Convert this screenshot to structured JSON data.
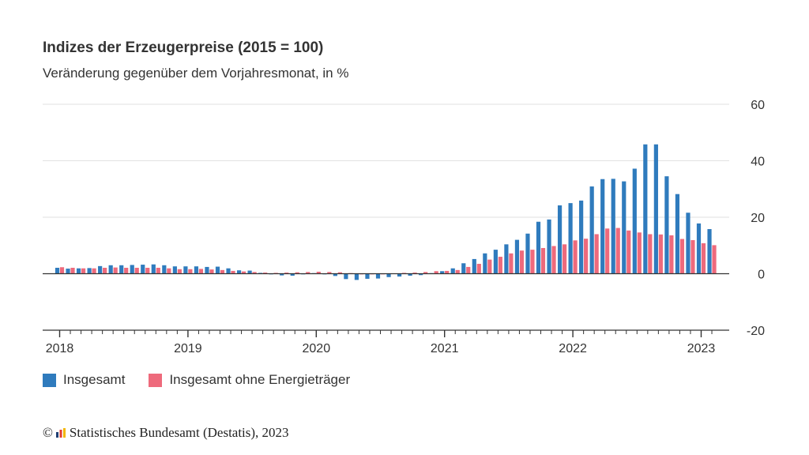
{
  "title": "Indizes der Erzeugerpreise (2015 = 100)",
  "subtitle": "Veränderung gegenüber dem Vorjahresmonat, in %",
  "source": {
    "copyright_symbol": "©",
    "text": "Statistisches Bundesamt (Destatis), 2023"
  },
  "chart_data": {
    "type": "bar",
    "title": "Indizes der Erzeugerpreise (2015 = 100)",
    "subtitle": "Veränderung gegenüber dem Vorjahresmonat, in %",
    "x_start": "2018-01",
    "x_end": "2023-02",
    "x_ticks": [
      "2018",
      "2019",
      "2020",
      "2021",
      "2022",
      "2023"
    ],
    "ylim": [
      -20,
      60
    ],
    "y_ticks": [
      -20,
      0,
      20,
      40,
      60
    ],
    "y_axis_position": "right",
    "grid": true,
    "legend_position": "bottom-left",
    "colors": {
      "insgesamt": "#2f7bbd",
      "ohne_energie": "#ee6a7c"
    },
    "categories": [
      "2018-01",
      "2018-02",
      "2018-03",
      "2018-04",
      "2018-05",
      "2018-06",
      "2018-07",
      "2018-08",
      "2018-09",
      "2018-10",
      "2018-11",
      "2018-12",
      "2019-01",
      "2019-02",
      "2019-03",
      "2019-04",
      "2019-05",
      "2019-06",
      "2019-07",
      "2019-08",
      "2019-09",
      "2019-10",
      "2019-11",
      "2019-12",
      "2020-01",
      "2020-02",
      "2020-03",
      "2020-04",
      "2020-05",
      "2020-06",
      "2020-07",
      "2020-08",
      "2020-09",
      "2020-10",
      "2020-11",
      "2020-12",
      "2021-01",
      "2021-02",
      "2021-03",
      "2021-04",
      "2021-05",
      "2021-06",
      "2021-07",
      "2021-08",
      "2021-09",
      "2021-10",
      "2021-11",
      "2021-12",
      "2022-01",
      "2022-02",
      "2022-03",
      "2022-04",
      "2022-05",
      "2022-06",
      "2022-07",
      "2022-08",
      "2022-09",
      "2022-10",
      "2022-11",
      "2022-12",
      "2023-01",
      "2023-02"
    ],
    "series": [
      {
        "name": "Insgesamt",
        "color": "#2f7bbd",
        "values": [
          2.1,
          1.8,
          1.9,
          2.0,
          2.7,
          3.0,
          3.0,
          3.1,
          3.2,
          3.3,
          3.0,
          2.6,
          2.6,
          2.6,
          2.4,
          2.5,
          1.9,
          1.2,
          1.1,
          0.3,
          -0.1,
          -0.6,
          -0.7,
          -0.2,
          0.2,
          -0.1,
          -0.8,
          -1.9,
          -2.2,
          -1.8,
          -1.7,
          -1.2,
          -1.0,
          -0.7,
          -0.5,
          0.2,
          0.9,
          1.9,
          3.7,
          5.2,
          7.2,
          8.5,
          10.4,
          12.0,
          14.2,
          18.4,
          19.2,
          24.2,
          25.0,
          25.9,
          30.9,
          33.5,
          33.6,
          32.7,
          37.2,
          45.8,
          45.8,
          34.5,
          28.2,
          21.6,
          17.8,
          15.8
        ]
      },
      {
        "name": "Insgesamt ohne Energieträger",
        "color": "#ee6a7c",
        "values": [
          2.3,
          2.1,
          1.9,
          1.9,
          2.1,
          2.2,
          2.1,
          2.1,
          2.1,
          2.1,
          1.9,
          1.6,
          1.6,
          1.7,
          1.5,
          1.3,
          1.0,
          0.8,
          0.6,
          0.4,
          0.3,
          0.4,
          0.5,
          0.6,
          0.7,
          0.6,
          0.5,
          0.2,
          -0.1,
          -0.2,
          -0.1,
          0.1,
          0.3,
          0.4,
          0.6,
          0.9,
          1.0,
          1.3,
          2.4,
          3.5,
          5.0,
          6.0,
          7.2,
          8.2,
          8.5,
          9.1,
          9.8,
          10.4,
          11.8,
          12.4,
          14.0,
          16.0,
          16.2,
          15.3,
          14.6,
          14.0,
          13.9,
          13.6,
          12.3,
          11.9,
          10.8,
          10.1
        ]
      }
    ]
  }
}
